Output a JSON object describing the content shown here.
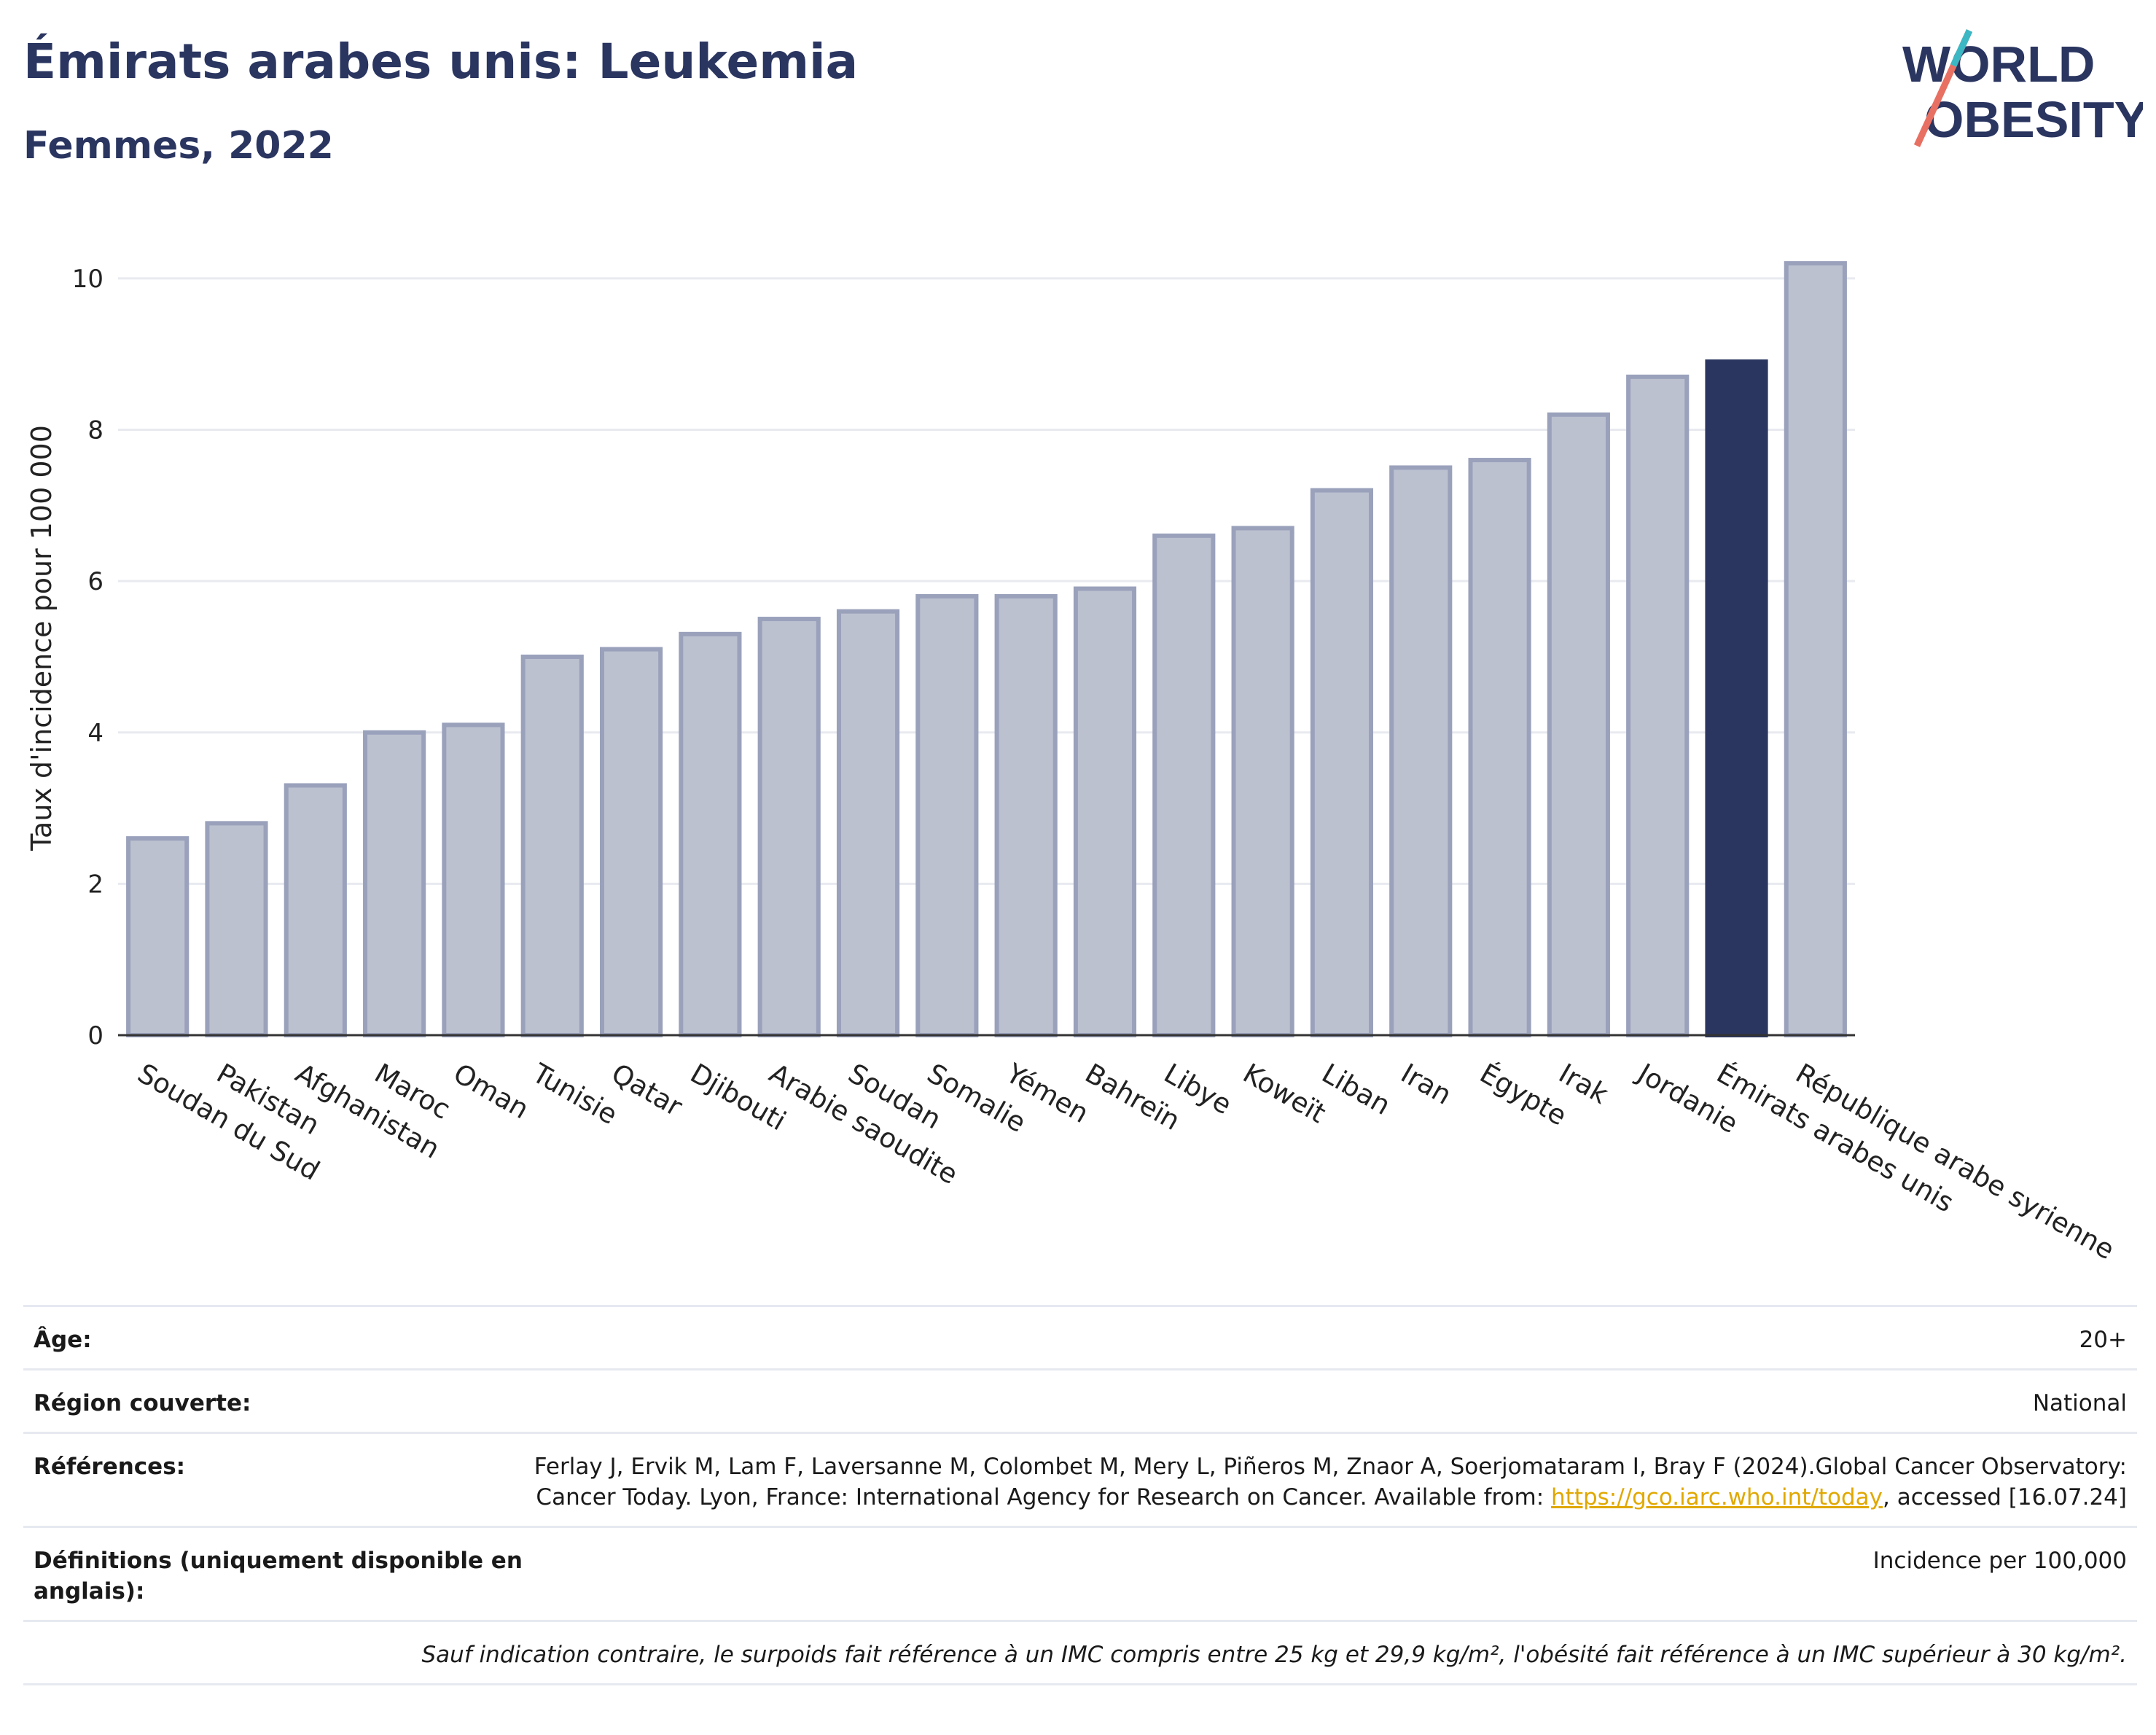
{
  "header": {
    "title": "Émirats arabes unis: Leukemia",
    "subtitle": "Femmes, 2022",
    "logo_line1": "WORLD",
    "logo_line2": "OBESITY"
  },
  "colors": {
    "bar": "#bcc1d0",
    "bar_border": "#9aa1bb",
    "highlight": "#2a3560",
    "grid": "#e8eaf0",
    "axis": "#333333"
  },
  "chart_data": {
    "type": "bar",
    "ylabel": "Taux d'incidence pour 100 000",
    "ylim": [
      0,
      10.5
    ],
    "yticks": [
      0,
      2,
      4,
      6,
      8,
      10
    ],
    "grid": true,
    "highlight": "Émirats arabes unis",
    "categories": [
      "Soudan du Sud",
      "Pakistan",
      "Afghanistan",
      "Maroc",
      "Oman",
      "Tunisie",
      "Qatar",
      "Djibouti",
      "Arabie saoudite",
      "Soudan",
      "Somalie",
      "Yémen",
      "Bahreïn",
      "Libye",
      "Koweït",
      "Liban",
      "Iran",
      "Égypte",
      "Irak",
      "Jordanie",
      "Émirats arabes unis",
      "République arabe syrienne"
    ],
    "values": [
      2.6,
      2.8,
      3.3,
      4.0,
      4.1,
      5.0,
      5.1,
      5.3,
      5.5,
      5.6,
      5.8,
      5.8,
      5.9,
      6.6,
      6.7,
      7.2,
      7.5,
      7.6,
      8.2,
      8.7,
      8.9,
      10.2
    ]
  },
  "meta": {
    "age_label": "Âge:",
    "age_value": "20+",
    "region_label": "Région couverte:",
    "region_value": "National",
    "ref_label": "Références:",
    "ref_text_1": "Ferlay J, Ervik M, Lam F, Laversanne M, Colombet M, Mery L, Piñeros M, Znaor A, Soerjomataram I, Bray F (2024).Global Cancer Observatory: Cancer Today. Lyon, France: International Agency for Research on Cancer. Available from: ",
    "ref_link": "https://gco.iarc.who.int/today",
    "ref_text_2": ", accessed [16.07.24]",
    "def_label": "Définitions (uniquement disponible en anglais):",
    "def_value": "Incidence per 100,000",
    "note": "Sauf indication contraire, le surpoids fait référence à un IMC compris entre 25 kg et 29,9 kg/m², l'obésité fait référence à un IMC supérieur à 30 kg/m²."
  }
}
